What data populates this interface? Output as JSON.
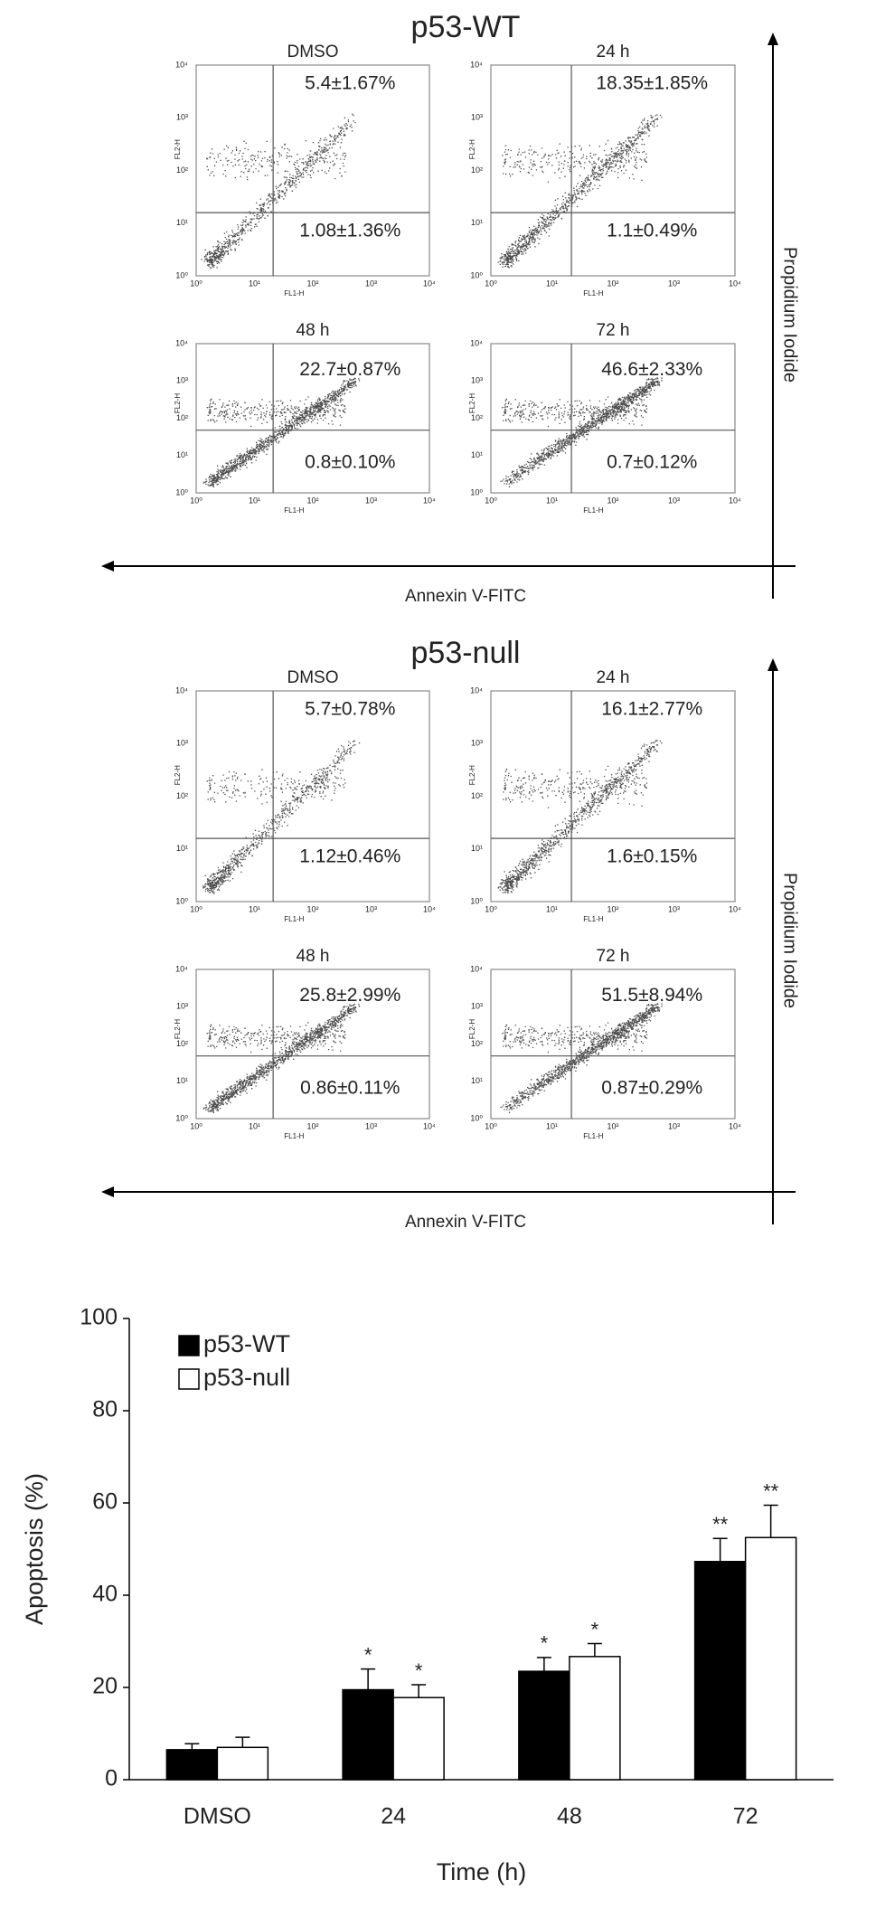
{
  "sections": [
    {
      "title": "p53-WT",
      "x_arrow_label": "Annexin V-FITC",
      "y_arrow_label": "Propidium Iodide",
      "panels": [
        {
          "title": "DMSO",
          "upper_right": "5.4±1.67%",
          "lower_right": "1.08±1.36%"
        },
        {
          "title": "24 h",
          "upper_right": "18.35±1.85%",
          "lower_right": "1.1±0.49%"
        },
        {
          "title": "48 h",
          "upper_right": "22.7±0.87%",
          "lower_right": "0.8±0.10%"
        },
        {
          "title": "72 h",
          "upper_right": "46.6±2.33%",
          "lower_right": "0.7±0.12%"
        }
      ]
    },
    {
      "title": "p53-null",
      "x_arrow_label": "Annexin V-FITC",
      "y_arrow_label": "Propidium Iodide",
      "panels": [
        {
          "title": "DMSO",
          "upper_right": "5.7±0.78%",
          "lower_right": "1.12±0.46%"
        },
        {
          "title": "24 h",
          "upper_right": "16.1±2.77%",
          "lower_right": "1.6±0.15%"
        },
        {
          "title": "48 h",
          "upper_right": "25.8±2.99%",
          "lower_right": "0.86±0.11%"
        },
        {
          "title": "72 h",
          "upper_right": "51.5±8.94%",
          "lower_right": "0.87±0.29%"
        }
      ]
    }
  ],
  "flow_axes": {
    "x_label": "FL1-H",
    "y_label": "FL2-H",
    "ticks": [
      "10⁰",
      "10¹",
      "10²",
      "10³",
      "10⁴"
    ]
  },
  "chart_data": {
    "type": "bar",
    "x_label": "Time (h)",
    "y_label": "Apoptosis (%)",
    "categories": [
      "DMSO",
      "24",
      "48",
      "72"
    ],
    "series": [
      {
        "name": "p53-WT",
        "color": "#000000",
        "values": [
          6.5,
          19.5,
          23.5,
          47.3
        ],
        "errors": [
          1.3,
          4.5,
          3,
          5
        ],
        "annotations": [
          null,
          "*",
          "*",
          "**"
        ]
      },
      {
        "name": "p53-null",
        "color": "#ffffff",
        "values": [
          7,
          17.8,
          26.7,
          52.5
        ],
        "errors": [
          2.2,
          2.8,
          2.8,
          7
        ],
        "annotations": [
          null,
          "*",
          "*",
          "**"
        ]
      }
    ],
    "ylim": [
      0,
      100
    ],
    "yticks": [
      0,
      20,
      40,
      60,
      80,
      100
    ],
    "legend": "top-left"
  }
}
